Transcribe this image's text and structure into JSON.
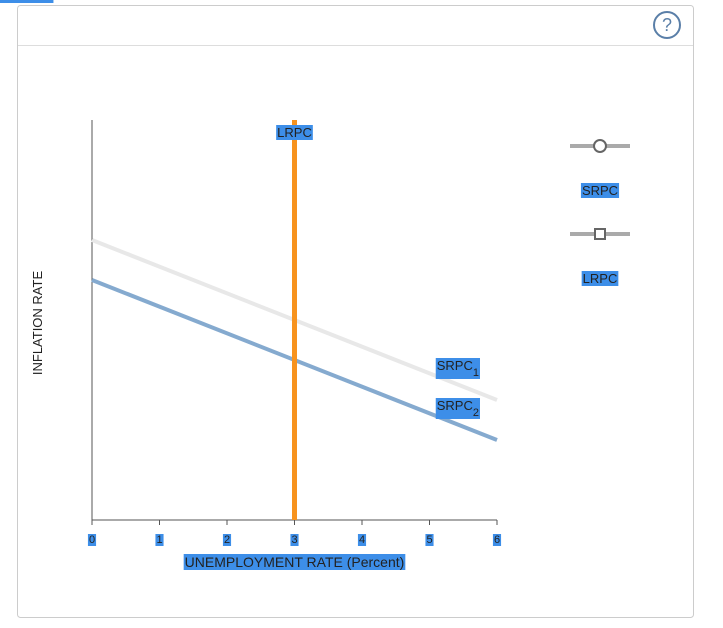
{
  "help": "?",
  "chart_data": {
    "type": "line",
    "x_label": "UNEMPLOYMENT RATE (Percent)",
    "y_label": "INFLATION RATE",
    "xlim": [
      0,
      6
    ],
    "xticks": [
      0,
      1,
      2,
      3,
      4,
      5,
      6
    ],
    "ylim": [
      0,
      10
    ],
    "series": [
      {
        "name": "SRPC",
        "subscript": "1",
        "color": "#e8e8e8",
        "x": [
          0,
          6
        ],
        "values": [
          7,
          3
        ]
      },
      {
        "name": "SRPC",
        "subscript": "2",
        "color": "#85aacf",
        "x": [
          0,
          6
        ],
        "values": [
          6,
          2
        ]
      },
      {
        "name": "LRPC",
        "color": "#f7931e",
        "x": [
          3,
          3
        ],
        "values": [
          0,
          10
        ]
      }
    ],
    "legend": [
      {
        "label": "SRPC",
        "marker": "circle"
      },
      {
        "label": "LRPC",
        "marker": "square"
      }
    ]
  }
}
